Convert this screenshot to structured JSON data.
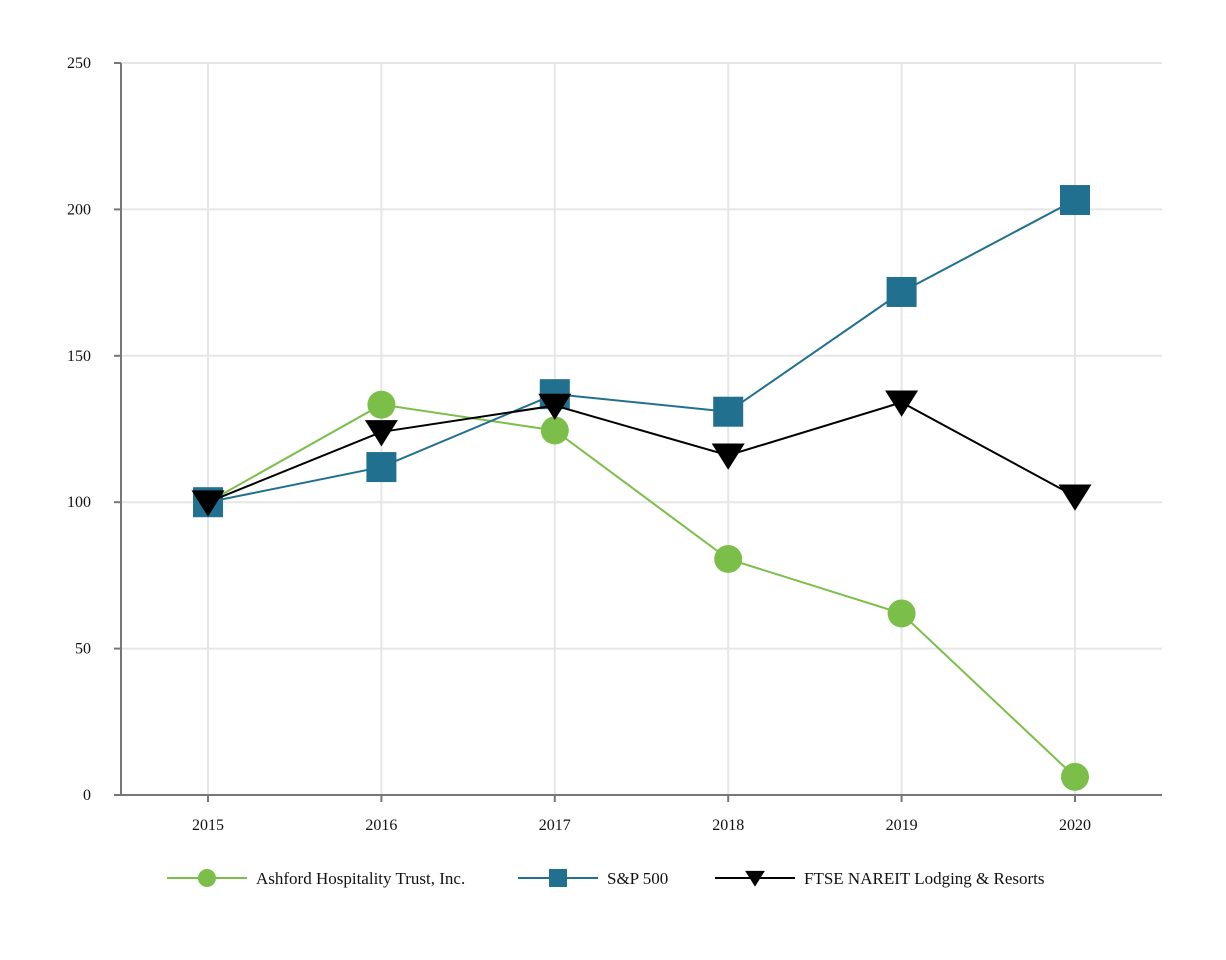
{
  "chart_data": {
    "type": "line",
    "title": "",
    "xlabel": "",
    "ylabel": "",
    "categories": [
      "2015",
      "2016",
      "2017",
      "2018",
      "2019",
      "2020"
    ],
    "ylim": [
      0,
      250
    ],
    "yticks": [
      0,
      50,
      100,
      150,
      200,
      250
    ],
    "grid": true,
    "legend_position": "bottom",
    "series": [
      {
        "name": "Ashford Hospitality Trust, Inc.",
        "marker": "circle",
        "color": "#7bbf4a",
        "values": [
          100,
          133.3,
          124.5,
          80.6,
          62.0,
          6.2
        ]
      },
      {
        "name": "S&P 500",
        "marker": "square",
        "color": "#22708f",
        "values": [
          100,
          112.0,
          136.9,
          130.9,
          171.8,
          203.2
        ]
      },
      {
        "name": "FTSE NAREIT Lodging & Resorts",
        "marker": "triangle-down",
        "color": "#000000",
        "values": [
          100,
          124.0,
          133.0,
          116.0,
          134.1,
          102.0
        ]
      }
    ]
  }
}
